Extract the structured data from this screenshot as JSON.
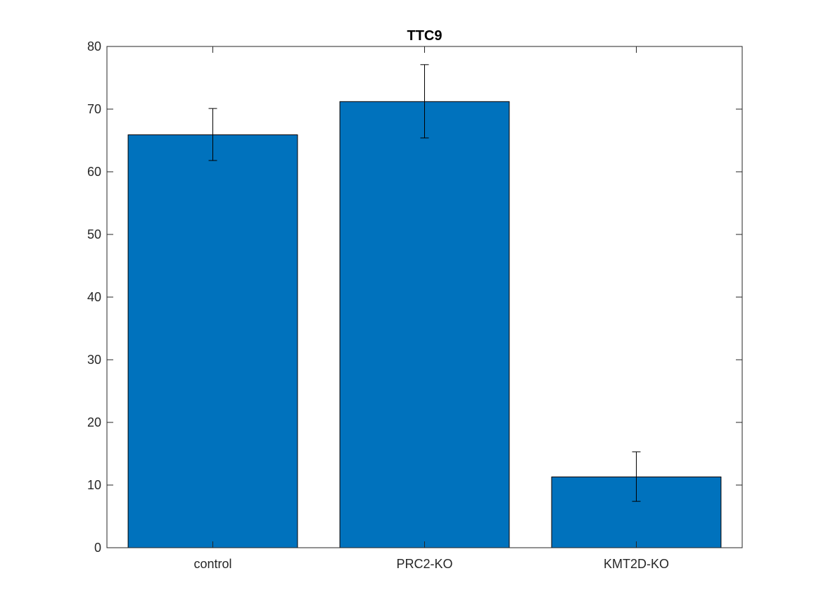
{
  "chart_data": {
    "type": "bar",
    "title": "TTC9",
    "xlabel": "",
    "ylabel": "",
    "categories": [
      "control",
      "PRC2-KO",
      "KMT2D-KO"
    ],
    "values": [
      65.9,
      71.2,
      11.3
    ],
    "error_low": [
      61.8,
      65.4,
      7.4
    ],
    "error_high": [
      70.1,
      77.1,
      15.3
    ],
    "ylim": [
      0,
      80
    ],
    "yticks": [
      0,
      10,
      20,
      30,
      40,
      50,
      60,
      70,
      80
    ],
    "grid": false,
    "legend": "none",
    "bar_color": "#0072BD",
    "edge_color": "#000000"
  }
}
